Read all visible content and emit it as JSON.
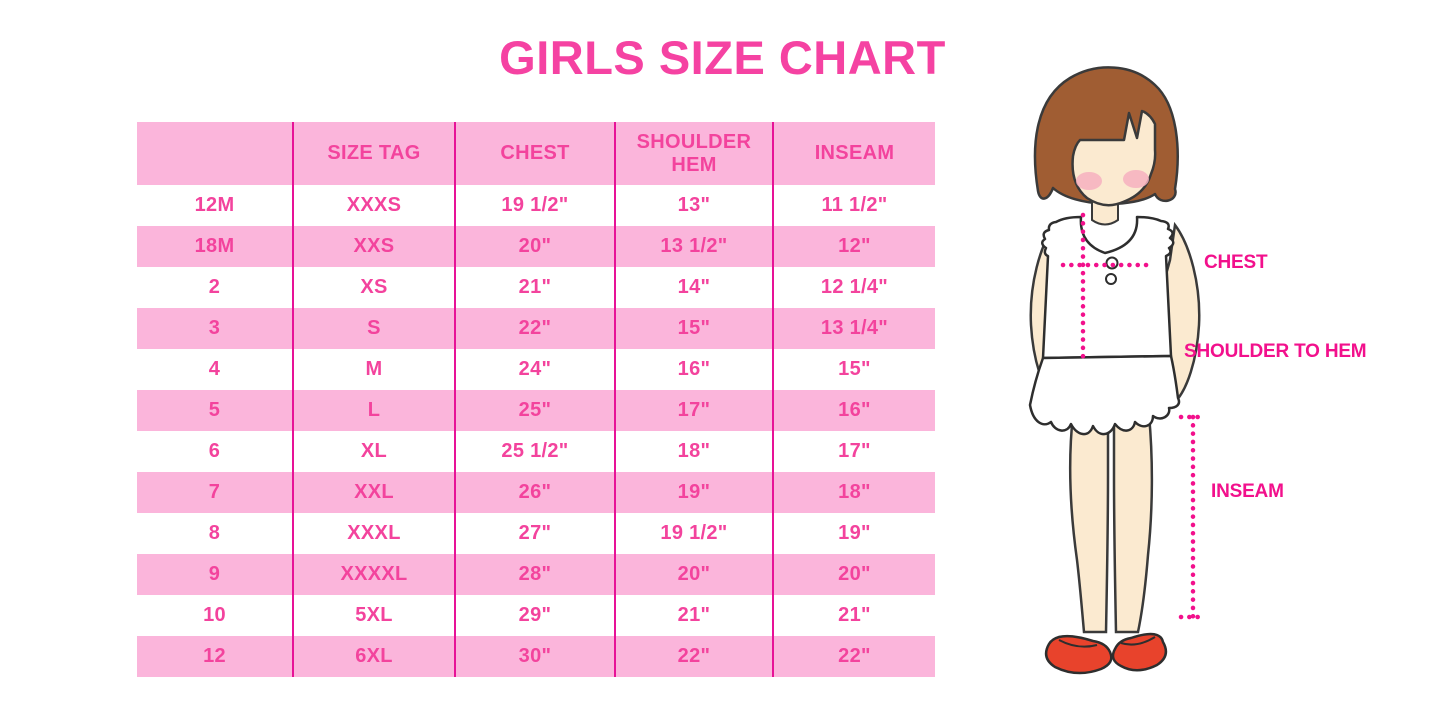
{
  "page": {
    "title": "GIRLS SIZE CHART"
  },
  "chart_data": {
    "type": "table",
    "title": "GIRLS SIZE CHART",
    "columns": [
      "",
      "SIZE TAG",
      "CHEST",
      "SHOULDER HEM",
      "INSEAM"
    ],
    "rows": [
      [
        "12M",
        "XXXS",
        "19 1/2\"",
        "13\"",
        "11 1/2\""
      ],
      [
        "18M",
        "XXS",
        "20\"",
        "13 1/2\"",
        "12\""
      ],
      [
        "2",
        "XS",
        "21\"",
        "14\"",
        "12 1/4\""
      ],
      [
        "3",
        "S",
        "22\"",
        "15\"",
        "13 1/4\""
      ],
      [
        "4",
        "M",
        "24\"",
        "16\"",
        "15\""
      ],
      [
        "5",
        "L",
        "25\"",
        "17\"",
        "16\""
      ],
      [
        "6",
        "XL",
        "25 1/2\"",
        "18\"",
        "17\""
      ],
      [
        "7",
        "XXL",
        "26\"",
        "19\"",
        "18\""
      ],
      [
        "8",
        "XXXL",
        "27\"",
        "19 1/2\"",
        "19\""
      ],
      [
        "9",
        "XXXXL",
        "28\"",
        "20\"",
        "20\""
      ],
      [
        "10",
        "5XL",
        "29\"",
        "21\"",
        "21\""
      ],
      [
        "12",
        "6XL",
        "30\"",
        "22\"",
        "22\""
      ]
    ],
    "annotations": [
      "CHEST",
      "SHOULDER TO HEM",
      "INSEAM"
    ]
  },
  "diagram": {
    "labels": {
      "chest": "CHEST",
      "shoulder_to_hem": "SHOULDER TO HEM",
      "inseam": "INSEAM"
    }
  },
  "colors": {
    "title_pink": "#f542a2",
    "cell_text_pink": "#f3439d",
    "row_pink": "#fbb5db",
    "divider_magenta": "#e71297",
    "label_magenta": "#f2108c",
    "hair_brown": "#a05d33",
    "skin": "#fbead0",
    "shoe_red": "#e8432c"
  }
}
